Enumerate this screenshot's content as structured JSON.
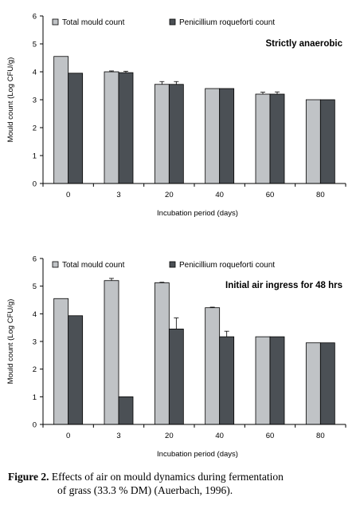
{
  "colors": {
    "total": "#c0c3c6",
    "penicillium": "#4b5055",
    "axis": "#000000"
  },
  "caption": {
    "label": "Figure 2.",
    "line1": " Effects of air on mould dynamics during fermentation",
    "line2": "of grass (33.3 % DM) (Auerbach, 1996)."
  },
  "chart_data": [
    {
      "type": "bar",
      "title": "Strictly anaerobic",
      "categories": [
        "0",
        "3",
        "20",
        "40",
        "60",
        "80"
      ],
      "xlabel": "Incubation period (days)",
      "ylabel": "Mould count (Log CFU/g)",
      "ylim": [
        0,
        6
      ],
      "yticks": [
        "0",
        "1",
        "2",
        "3",
        "4",
        "5",
        "6"
      ],
      "legend": "top-left",
      "grid": false,
      "series": [
        {
          "name": "Total mould count",
          "values": [
            4.55,
            4.0,
            3.55,
            3.4,
            3.2,
            3.0
          ],
          "errors": [
            0,
            0.03,
            0.1,
            0,
            0.07,
            0
          ]
        },
        {
          "name": "Penicillium roqueforti count",
          "values": [
            3.95,
            3.97,
            3.55,
            3.4,
            3.2,
            3.0
          ],
          "errors": [
            0,
            0.05,
            0.1,
            0,
            0.08,
            0
          ]
        }
      ]
    },
    {
      "type": "bar",
      "title": "Initial air ingress for 48 hrs",
      "categories": [
        "0",
        "3",
        "20",
        "40",
        "60",
        "80"
      ],
      "xlabel": "Incubation period (days)",
      "ylabel": "Mould count (Log CFU/g)",
      "ylim": [
        0,
        6
      ],
      "yticks": [
        "0",
        "1",
        "2",
        "3",
        "4",
        "5",
        "6"
      ],
      "legend": "top-left",
      "grid": false,
      "series": [
        {
          "name": "Total mould count",
          "values": [
            4.55,
            5.2,
            5.12,
            4.22,
            3.17,
            2.95
          ],
          "errors": [
            0,
            0.08,
            0.02,
            0.02,
            0,
            0
          ]
        },
        {
          "name": "Penicillium roqueforti count",
          "values": [
            3.93,
            1.0,
            3.45,
            3.17,
            3.17,
            2.95
          ],
          "errors": [
            0,
            0,
            0.4,
            0.2,
            0,
            0
          ]
        }
      ]
    }
  ]
}
